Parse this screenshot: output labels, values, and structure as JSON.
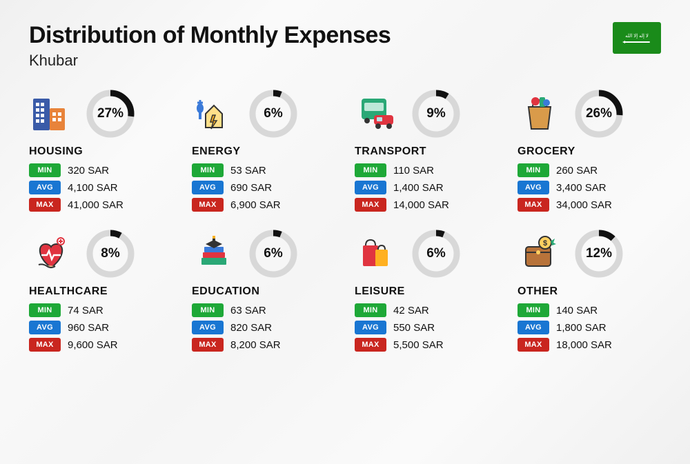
{
  "title": "Distribution of Monthly Expenses",
  "subtitle": "Khubar",
  "currency": "SAR",
  "labels": {
    "min": "MIN",
    "avg": "AVG",
    "max": "MAX"
  },
  "colors": {
    "min_badge": "#1ea837",
    "avg_badge": "#1976d2",
    "max_badge": "#c9261f",
    "donut_bg": "#d8d8d8",
    "donut_fg": "#111111",
    "flag_bg": "#1a8b1a"
  },
  "donut": {
    "radius": 30,
    "circumference": 188.5,
    "stroke_width": 9
  },
  "categories": [
    {
      "name": "HOUSING",
      "pct": 27,
      "min": "320 SAR",
      "avg": "4,100 SAR",
      "max": "41,000 SAR",
      "icon": "housing"
    },
    {
      "name": "ENERGY",
      "pct": 6,
      "min": "53 SAR",
      "avg": "690 SAR",
      "max": "6,900 SAR",
      "icon": "energy"
    },
    {
      "name": "TRANSPORT",
      "pct": 9,
      "min": "110 SAR",
      "avg": "1,400 SAR",
      "max": "14,000 SAR",
      "icon": "transport"
    },
    {
      "name": "GROCERY",
      "pct": 26,
      "min": "260 SAR",
      "avg": "3,400 SAR",
      "max": "34,000 SAR",
      "icon": "grocery"
    },
    {
      "name": "HEALTHCARE",
      "pct": 8,
      "min": "74 SAR",
      "avg": "960 SAR",
      "max": "9,600 SAR",
      "icon": "healthcare"
    },
    {
      "name": "EDUCATION",
      "pct": 6,
      "min": "63 SAR",
      "avg": "820 SAR",
      "max": "8,200 SAR",
      "icon": "education"
    },
    {
      "name": "LEISURE",
      "pct": 6,
      "min": "42 SAR",
      "avg": "550 SAR",
      "max": "5,500 SAR",
      "icon": "leisure"
    },
    {
      "name": "OTHER",
      "pct": 12,
      "min": "140 SAR",
      "avg": "1,800 SAR",
      "max": "18,000 SAR",
      "icon": "other"
    }
  ]
}
